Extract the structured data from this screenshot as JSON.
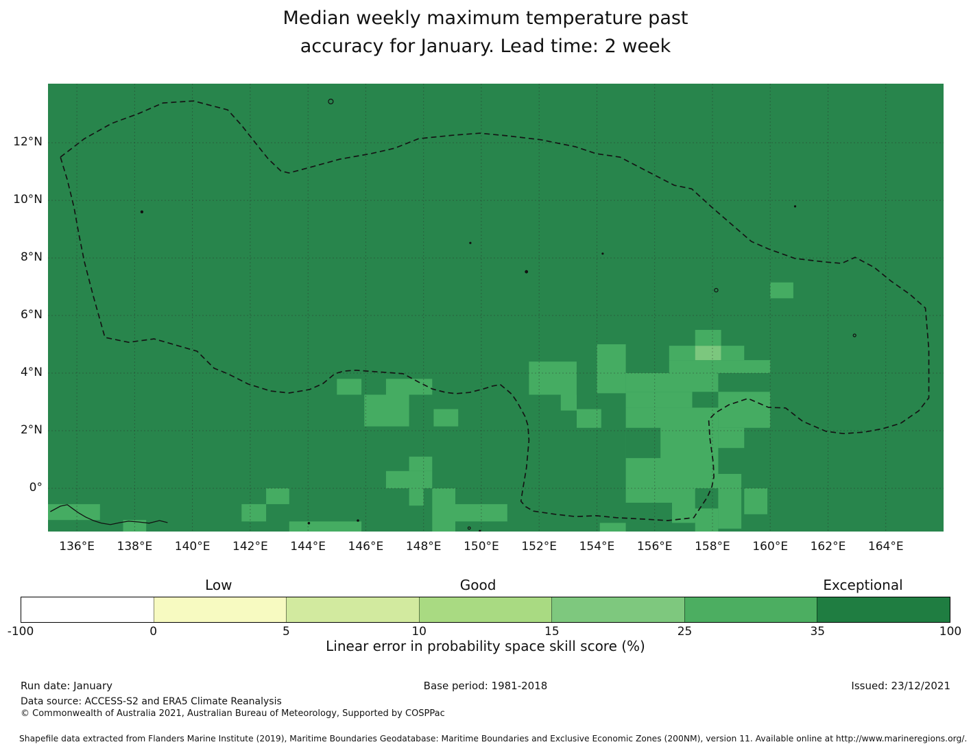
{
  "title": {
    "line1": "Median weekly maximum temperature past",
    "line2": "accuracy for January. Lead time: 2 week"
  },
  "footer": {
    "run_date": "Run date: January",
    "base_period": "Base period: 1981-2018",
    "issued": "Issued: 23/12/2021",
    "data_source": "Data source: ACCESS-S2 and ERA5 Climate Reanalysis",
    "copyright": "© Commonwealth of Australia 2021, Australian Bureau of Meteorology, Supported by COSPPac",
    "shapefile": "Shapefile data extracted from Flanders Marine Institute (2019), Maritime Boundaries Geodatabase: Maritime Boundaries and Exclusive Economic Zones (200NM), version 11. Available online at http://www.marineregions.org/."
  },
  "chart_data": {
    "type": "heatmap",
    "title": "Median weekly maximum temperature past accuracy for January. Lead time: 2 week",
    "map": {
      "lon_range": [
        135.0,
        166.0
      ],
      "lat_range": [
        -1.5,
        14.05
      ],
      "grid_on": true,
      "gridline_lons": [
        136,
        138,
        140,
        142,
        144,
        146,
        148,
        150,
        152,
        154,
        156,
        158,
        160,
        162,
        164
      ],
      "gridline_lats": [
        0,
        2,
        4,
        6,
        8,
        10,
        12
      ],
      "x_ticks": [
        {
          "label": "136°E",
          "lon": 136
        },
        {
          "label": "138°E",
          "lon": 138
        },
        {
          "label": "140°E",
          "lon": 140
        },
        {
          "label": "142°E",
          "lon": 142
        },
        {
          "label": "144°E",
          "lon": 144
        },
        {
          "label": "146°E",
          "lon": 146
        },
        {
          "label": "148°E",
          "lon": 148
        },
        {
          "label": "150°E",
          "lon": 150
        },
        {
          "label": "152°E",
          "lon": 152
        },
        {
          "label": "154°E",
          "lon": 154
        },
        {
          "label": "156°E",
          "lon": 156
        },
        {
          "label": "158°E",
          "lon": 158
        },
        {
          "label": "160°E",
          "lon": 160
        },
        {
          "label": "162°E",
          "lon": 162
        },
        {
          "label": "164°E",
          "lon": 164
        }
      ],
      "y_ticks": [
        {
          "label": "12°N",
          "lat": 12
        },
        {
          "label": "10°N",
          "lat": 10
        },
        {
          "label": "8°N",
          "lat": 8
        },
        {
          "label": "6°N",
          "lat": 6
        },
        {
          "label": "4°N",
          "lat": 4
        },
        {
          "label": "2°N",
          "lat": 2
        },
        {
          "label": "0°",
          "lat": 0
        }
      ],
      "colors": {
        "background": "#28854C",
        "35-100": "#28854C",
        "25-35": "#45AC62",
        "15-25": "#7CC77E",
        "gridline": "rgba(40,40,40,0.4)",
        "boundary": "#141414",
        "coast": "#111111"
      },
      "background_value": "35-100",
      "cells": [
        {
          "lon": [
            135.0,
            136.8
          ],
          "lat": [
            -1.1,
            -0.55
          ],
          "v": "25-35"
        },
        {
          "lon": [
            137.6,
            138.4
          ],
          "lat": [
            -1.5,
            -1.1
          ],
          "v": "25-35"
        },
        {
          "lon": [
            141.7,
            142.55
          ],
          "lat": [
            -1.15,
            -0.55
          ],
          "v": "25-35"
        },
        {
          "lon": [
            142.55,
            143.35
          ],
          "lat": [
            -0.55,
            0.0
          ],
          "v": "25-35"
        },
        {
          "lon": [
            143.35,
            145.85
          ],
          "lat": [
            -1.5,
            -1.15
          ],
          "v": "25-35"
        },
        {
          "lon": [
            146.7,
            148.3
          ],
          "lat": [
            0.0,
            0.6
          ],
          "v": "25-35"
        },
        {
          "lon": [
            147.5,
            148.3
          ],
          "lat": [
            0.6,
            1.1
          ],
          "v": "25-35"
        },
        {
          "lon": [
            147.5,
            148.0
          ],
          "lat": [
            -0.6,
            0.0
          ],
          "v": "25-35"
        },
        {
          "lon": [
            148.3,
            149.1
          ],
          "lat": [
            -1.5,
            0.0
          ],
          "v": "25-35"
        },
        {
          "lon": [
            149.1,
            150.9
          ],
          "lat": [
            -1.15,
            -0.55
          ],
          "v": "25-35"
        },
        {
          "lon": [
            145.0,
            145.85
          ],
          "lat": [
            3.25,
            3.8
          ],
          "v": "25-35"
        },
        {
          "lon": [
            146.7,
            148.3
          ],
          "lat": [
            3.25,
            3.8
          ],
          "v": "25-35"
        },
        {
          "lon": [
            145.95,
            147.5
          ],
          "lat": [
            2.15,
            3.25
          ],
          "v": "25-35"
        },
        {
          "lon": [
            148.35,
            149.2
          ],
          "lat": [
            2.15,
            2.75
          ],
          "v": "25-35"
        },
        {
          "lon": [
            151.65,
            153.3
          ],
          "lat": [
            3.25,
            4.4
          ],
          "v": "25-35"
        },
        {
          "lon": [
            152.75,
            153.3
          ],
          "lat": [
            2.7,
            3.25
          ],
          "v": "25-35"
        },
        {
          "lon": [
            153.3,
            154.15
          ],
          "lat": [
            2.1,
            2.75
          ],
          "v": "25-35"
        },
        {
          "lon": [
            154.0,
            155.0
          ],
          "lat": [
            3.3,
            5.0
          ],
          "v": "25-35"
        },
        {
          "lon": [
            155.0,
            158.2
          ],
          "lat": [
            3.35,
            4.0
          ],
          "v": "25-35"
        },
        {
          "lon": [
            155.0,
            157.3
          ],
          "lat": [
            2.8,
            3.35
          ],
          "v": "25-35"
        },
        {
          "lon": [
            155.0,
            158.2
          ],
          "lat": [
            0.0,
            2.8
          ],
          "v": "25-35"
        },
        {
          "lon": [
            155.0,
            156.2
          ],
          "lat": [
            1.05,
            2.1
          ],
          "v": "35-100"
        },
        {
          "lon": [
            156.5,
            160.0
          ],
          "lat": [
            4.0,
            4.45
          ],
          "v": "25-35"
        },
        {
          "lon": [
            156.5,
            157.4
          ],
          "lat": [
            4.45,
            4.95
          ],
          "v": "25-35"
        },
        {
          "lon": [
            157.4,
            158.3
          ],
          "lat": [
            4.45,
            4.95
          ],
          "v": "15-25"
        },
        {
          "lon": [
            158.3,
            159.1
          ],
          "lat": [
            4.45,
            4.95
          ],
          "v": "25-35"
        },
        {
          "lon": [
            157.4,
            158.3
          ],
          "lat": [
            4.95,
            5.5
          ],
          "v": "25-35"
        },
        {
          "lon": [
            158.2,
            160.0
          ],
          "lat": [
            2.1,
            3.35
          ],
          "v": "25-35"
        },
        {
          "lon": [
            158.2,
            159.1
          ],
          "lat": [
            1.4,
            2.1
          ],
          "v": "25-35"
        },
        {
          "lon": [
            158.0,
            159.0
          ],
          "lat": [
            0.0,
            0.5
          ],
          "v": "25-35"
        },
        {
          "lon": [
            155.0,
            156.9
          ],
          "lat": [
            -0.5,
            0.0
          ],
          "v": "25-35"
        },
        {
          "lon": [
            156.6,
            157.4
          ],
          "lat": [
            -1.2,
            0.0
          ],
          "v": "25-35"
        },
        {
          "lon": [
            157.4,
            158.2
          ],
          "lat": [
            -1.5,
            -0.7
          ],
          "v": "25-35"
        },
        {
          "lon": [
            158.2,
            159.0
          ],
          "lat": [
            -1.4,
            0.0
          ],
          "v": "25-35"
        },
        {
          "lon": [
            159.1,
            159.9
          ],
          "lat": [
            -0.9,
            0.0
          ],
          "v": "25-35"
        },
        {
          "lon": [
            154.1,
            155.0
          ],
          "lat": [
            -1.5,
            -1.2
          ],
          "v": "25-35"
        },
        {
          "lon": [
            160.0,
            160.8
          ],
          "lat": [
            6.6,
            7.15
          ],
          "v": "25-35"
        }
      ],
      "eez_boundary": [
        [
          135.43,
          11.5
        ],
        [
          136.26,
          12.14
        ],
        [
          137.2,
          12.67
        ],
        [
          138.15,
          13.02
        ],
        [
          138.98,
          13.38
        ],
        [
          140.04,
          13.45
        ],
        [
          141.22,
          13.14
        ],
        [
          141.69,
          12.62
        ],
        [
          142.16,
          12.02
        ],
        [
          142.63,
          11.43
        ],
        [
          143.06,
          11.02
        ],
        [
          143.34,
          10.95
        ],
        [
          144.05,
          11.14
        ],
        [
          145.11,
          11.43
        ],
        [
          146.18,
          11.62
        ],
        [
          147.0,
          11.81
        ],
        [
          147.83,
          12.14
        ],
        [
          149.01,
          12.26
        ],
        [
          149.95,
          12.33
        ],
        [
          150.9,
          12.24
        ],
        [
          152.08,
          12.1
        ],
        [
          153.26,
          11.86
        ],
        [
          153.97,
          11.62
        ],
        [
          154.8,
          11.5
        ],
        [
          155.62,
          11.07
        ],
        [
          156.68,
          10.52
        ],
        [
          157.28,
          10.4
        ],
        [
          157.98,
          9.76
        ],
        [
          159.35,
          8.57
        ],
        [
          159.94,
          8.31
        ],
        [
          160.86,
          7.98
        ],
        [
          161.88,
          7.86
        ],
        [
          162.47,
          7.81
        ],
        [
          162.94,
          8.02
        ],
        [
          163.6,
          7.67
        ],
        [
          164.19,
          7.19
        ],
        [
          164.83,
          6.74
        ],
        [
          165.37,
          6.26
        ],
        [
          165.49,
          4.83
        ],
        [
          165.49,
          3.14
        ],
        [
          165.14,
          2.69
        ],
        [
          164.52,
          2.26
        ],
        [
          163.89,
          2.07
        ],
        [
          163.25,
          1.95
        ],
        [
          162.54,
          1.9
        ],
        [
          161.93,
          1.98
        ],
        [
          161.12,
          2.33
        ],
        [
          160.53,
          2.79
        ],
        [
          159.94,
          2.81
        ],
        [
          159.23,
          3.12
        ],
        [
          158.57,
          2.9
        ],
        [
          158.1,
          2.62
        ],
        [
          157.87,
          2.38
        ],
        [
          157.91,
          1.74
        ],
        [
          158.03,
          0.88
        ],
        [
          158.05,
          0.4
        ],
        [
          157.98,
          0.05
        ],
        [
          157.82,
          -0.31
        ],
        [
          157.35,
          -1.02
        ],
        [
          156.45,
          -1.12
        ],
        [
          155.62,
          -1.07
        ],
        [
          154.68,
          -1.02
        ],
        [
          153.97,
          -0.95
        ],
        [
          153.26,
          -0.98
        ],
        [
          152.55,
          -0.9
        ],
        [
          151.8,
          -0.79
        ],
        [
          151.54,
          -0.64
        ],
        [
          151.37,
          -0.45
        ],
        [
          151.44,
          0.0
        ],
        [
          151.56,
          0.71
        ],
        [
          151.65,
          1.67
        ],
        [
          151.61,
          2.19
        ],
        [
          151.51,
          2.5
        ],
        [
          151.25,
          2.98
        ],
        [
          151.06,
          3.26
        ],
        [
          150.9,
          3.4
        ],
        [
          150.66,
          3.6
        ],
        [
          150.38,
          3.55
        ],
        [
          150.07,
          3.45
        ],
        [
          149.59,
          3.33
        ],
        [
          149.12,
          3.29
        ],
        [
          148.77,
          3.33
        ],
        [
          148.3,
          3.45
        ],
        [
          147.83,
          3.69
        ],
        [
          147.29,
          3.98
        ],
        [
          146.77,
          4.02
        ],
        [
          146.3,
          4.05
        ],
        [
          145.66,
          4.1
        ],
        [
          145.23,
          4.07
        ],
        [
          144.93,
          3.98
        ],
        [
          144.52,
          3.64
        ],
        [
          144.05,
          3.43
        ],
        [
          143.34,
          3.31
        ],
        [
          142.71,
          3.38
        ],
        [
          141.93,
          3.62
        ],
        [
          141.22,
          3.98
        ],
        [
          140.75,
          4.17
        ],
        [
          140.16,
          4.76
        ],
        [
          139.09,
          5.07
        ],
        [
          138.67,
          5.19
        ],
        [
          137.79,
          5.07
        ],
        [
          136.97,
          5.24
        ],
        [
          136.57,
          6.67
        ],
        [
          136.26,
          7.86
        ],
        [
          136.07,
          8.81
        ],
        [
          135.9,
          9.76
        ],
        [
          135.67,
          10.71
        ]
      ],
      "png_coastline": [
        [
          135.08,
          -0.81
        ],
        [
          135.43,
          -0.62
        ],
        [
          135.67,
          -0.57
        ],
        [
          135.86,
          -0.71
        ],
        [
          136.07,
          -0.86
        ],
        [
          136.31,
          -1.0
        ],
        [
          136.57,
          -1.12
        ],
        [
          136.85,
          -1.21
        ],
        [
          137.16,
          -1.26
        ],
        [
          137.49,
          -1.19
        ],
        [
          137.79,
          -1.14
        ],
        [
          138.15,
          -1.17
        ],
        [
          138.5,
          -1.21
        ],
        [
          138.86,
          -1.12
        ],
        [
          139.14,
          -1.19
        ]
      ],
      "islands": [
        {
          "name": "guam",
          "lon": 144.79,
          "lat": 13.43,
          "r": 3.5,
          "outline": true
        },
        {
          "name": "yap",
          "lon": 138.25,
          "lat": 9.6,
          "r": 1.6,
          "outline": false
        },
        {
          "name": "island",
          "lon": 149.62,
          "lat": 8.52,
          "r": 1.0,
          "outline": false
        },
        {
          "name": "chuuk",
          "lon": 151.56,
          "lat": 7.52,
          "r": 1.8,
          "outline": false
        },
        {
          "name": "island",
          "lon": 154.2,
          "lat": 8.15,
          "r": 1.0,
          "outline": false
        },
        {
          "name": "pohnpei",
          "lon": 158.13,
          "lat": 6.88,
          "r": 2.6,
          "outline": true
        },
        {
          "name": "island",
          "lon": 160.86,
          "lat": 9.79,
          "r": 1.0,
          "outline": false
        },
        {
          "name": "kosrae",
          "lon": 162.92,
          "lat": 5.31,
          "r": 2.0,
          "outline": true
        },
        {
          "name": "island",
          "lon": 144.03,
          "lat": -1.21,
          "r": 1.2,
          "outline": false
        },
        {
          "name": "island",
          "lon": 145.73,
          "lat": -1.12,
          "r": 1.2,
          "outline": false
        },
        {
          "name": "new-ireland",
          "lon": 149.58,
          "lat": -1.38,
          "r": 1.8,
          "outline": true
        },
        {
          "name": "island",
          "lon": 149.95,
          "lat": -1.48,
          "r": 1.0,
          "outline": false
        }
      ]
    },
    "colorbar": {
      "label": "Linear error in probability space skill score (%)",
      "tick_labels": [
        "-100",
        "0",
        "5",
        "10",
        "15",
        "25",
        "35",
        "100"
      ],
      "segments": [
        {
          "range": "-100-0",
          "color": "#FFFFFF"
        },
        {
          "range": "0-5",
          "color": "#F7FAC1"
        },
        {
          "range": "5-10",
          "color": "#D2EA9F"
        },
        {
          "range": "10-15",
          "color": "#A9DA82"
        },
        {
          "range": "15-25",
          "color": "#7EC87E"
        },
        {
          "range": "25-35",
          "color": "#4CAE61"
        },
        {
          "range": "35-100",
          "color": "#1F7D41"
        }
      ],
      "category_labels": [
        {
          "text": "Low",
          "pos_pct": 21.3
        },
        {
          "text": "Good",
          "pos_pct": 49.2
        },
        {
          "text": "Exceptional",
          "pos_pct": 90.6
        }
      ]
    }
  }
}
